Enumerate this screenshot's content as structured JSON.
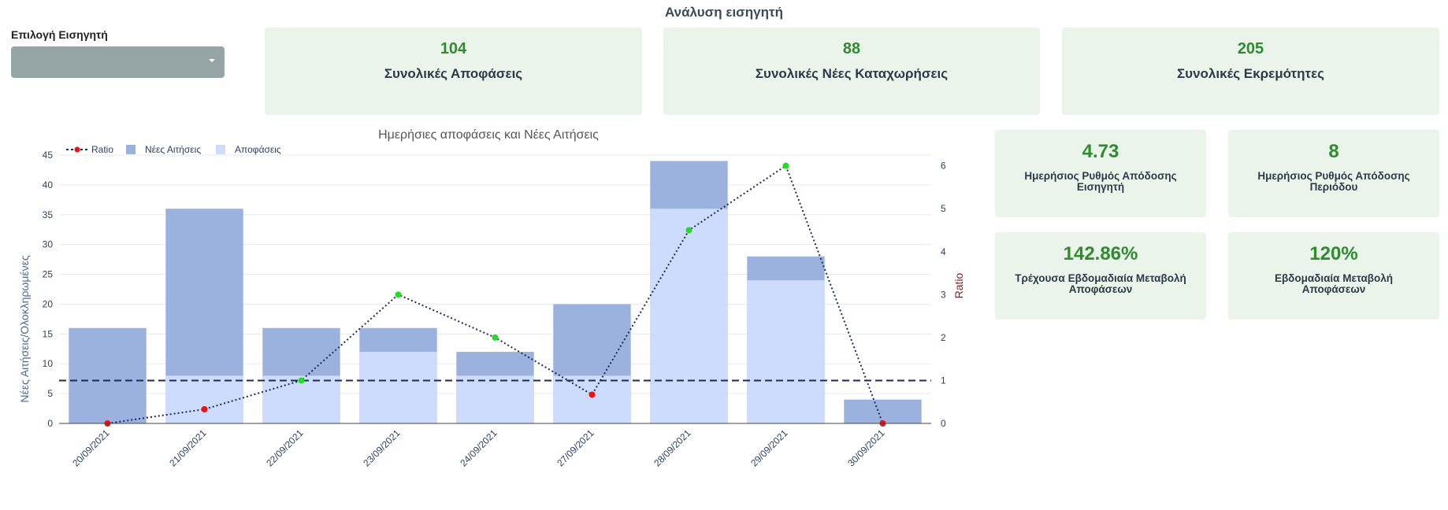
{
  "header": {
    "title": "Ανάλυση εισηγητή"
  },
  "selector": {
    "label": "Επιλογή Εισηγητή",
    "value": ""
  },
  "kpis": [
    {
      "value": "104",
      "label": "Συνολικές Αποφάσεις"
    },
    {
      "value": "88",
      "label": "Συνολικές Νέες Καταχωρήσεις"
    },
    {
      "value": "205",
      "label": "Συνολικές Εκρεμότητες"
    }
  ],
  "metrics": [
    {
      "value": "4.73",
      "label": "Ημερήσιος Ρυθμός Απόδοσης Εισηγητή"
    },
    {
      "value": "8",
      "label": "Ημερήσιος Ρυθμός Απόδοσης Περιόδου"
    },
    {
      "value": "142.86%",
      "label": "Τρέχουσα Εβδομαδιαία Μεταβολή Αποφάσεων"
    },
    {
      "value": "120%",
      "label": "Εβδομαδιαία Μεταβολή Αποφάσεων"
    }
  ],
  "colors": {
    "new_bar": "#9bb1de",
    "decision_bar": "#cddcfd",
    "ratio_line": "#1a2a5a",
    "ratio_up": "#22dd22",
    "ratio_down": "#ee1111",
    "right_axis": "#8b1a1a",
    "card_bg": "#eaf4ea",
    "card_value": "#2e8b2e"
  },
  "chart_data": {
    "type": "bar",
    "title": "Ημερήσιες αποφάσεις και Νέες Αιτήσεις",
    "categories": [
      "20/09/2021",
      "21/09/2021",
      "22/09/2021",
      "23/09/2021",
      "24/09/2021",
      "27/09/2021",
      "28/09/2021",
      "29/09/2021",
      "30/09/2021"
    ],
    "series": [
      {
        "name": "Νέες Αιτήσεις",
        "values": [
          16,
          36,
          16,
          16,
          12,
          20,
          44,
          28,
          4
        ]
      },
      {
        "name": "Αποφάσεις",
        "values": [
          0,
          8,
          8,
          12,
          8,
          8,
          36,
          24,
          0
        ]
      },
      {
        "name": "Ratio",
        "values": [
          0,
          0.33,
          1,
          3,
          2,
          0.67,
          4.5,
          6,
          0
        ],
        "axis": "right",
        "markers": [
          "down",
          "down",
          "up",
          "up",
          "up",
          "down",
          "up",
          "up",
          "down"
        ]
      }
    ],
    "ylabel": "Νέες Αιτήσεις/Ολοκληρωμένες",
    "y2label": "Ratio",
    "ylim": [
      0,
      45
    ],
    "y2lim": [
      0,
      6.25
    ],
    "yticks": [
      0,
      5,
      10,
      15,
      20,
      25,
      30,
      35,
      40,
      45
    ],
    "y2ticks": [
      0,
      1,
      2,
      3,
      4,
      5,
      6
    ],
    "reference_line": {
      "value": 1,
      "axis": "right",
      "style": "dashed"
    },
    "legend": "top-left",
    "grid": true
  }
}
